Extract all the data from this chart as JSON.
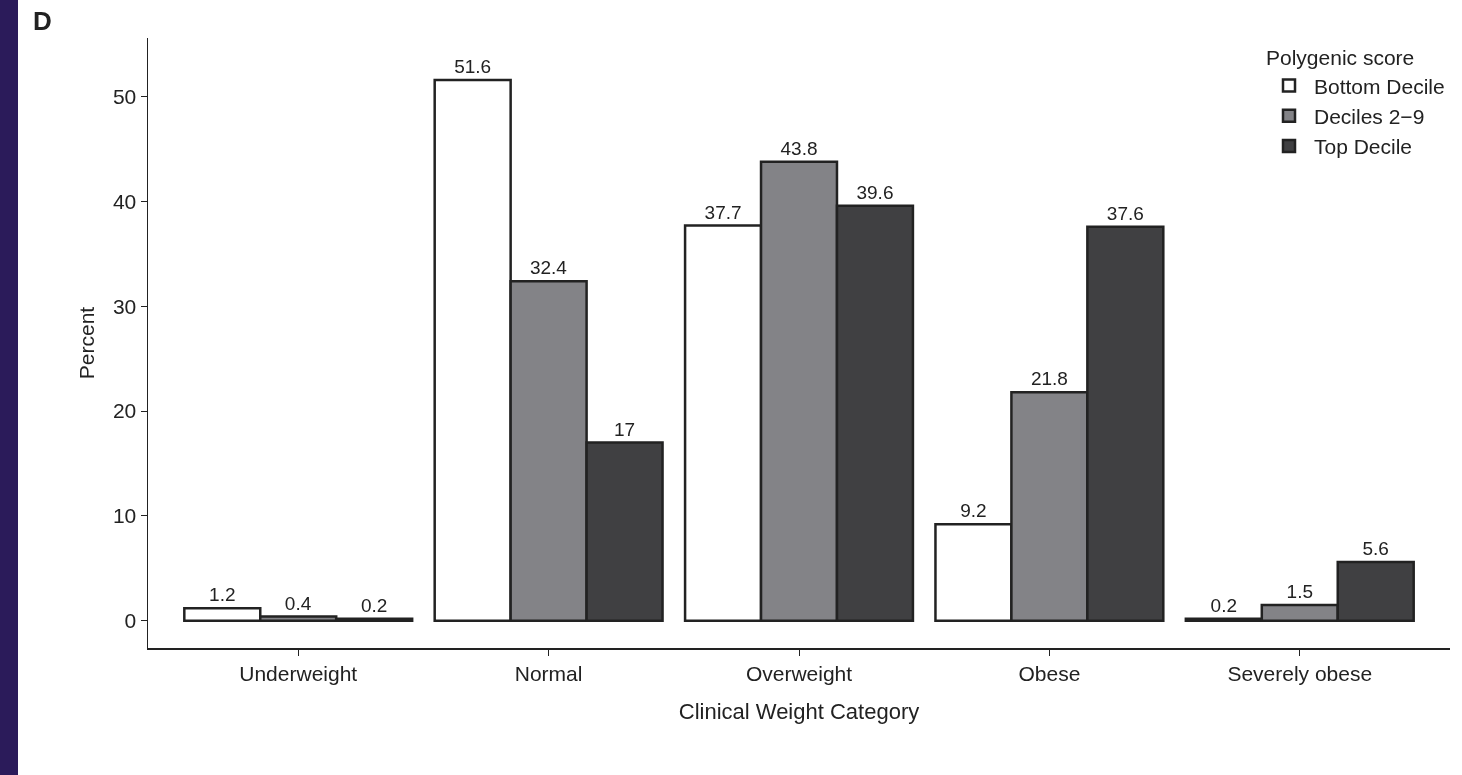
{
  "chart_data": {
    "type": "bar",
    "title": "D",
    "xlabel": "Clinical Weight Category",
    "ylabel": "Percent",
    "legend_title": "Polygenic score",
    "categories": [
      "Underweight",
      "Normal",
      "Overweight",
      "Obese",
      "Severely obese"
    ],
    "series": [
      {
        "name": "Bottom Decile",
        "color": "#ffffff",
        "values": [
          1.2,
          51.6,
          37.7,
          9.2,
          0.2
        ]
      },
      {
        "name": "Deciles 2−9",
        "color": "#838387",
        "values": [
          0.4,
          32.4,
          43.8,
          21.8,
          1.5
        ]
      },
      {
        "name": "Top Decile",
        "color": "#404042",
        "values": [
          0.2,
          17,
          39.6,
          37.6,
          5.6
        ]
      }
    ],
    "ylim": [
      -2.6,
      55.6
    ],
    "yticks": [
      0,
      10,
      20,
      30,
      40,
      50
    ],
    "grid": false,
    "legend": "top right",
    "data_labels": true
  }
}
